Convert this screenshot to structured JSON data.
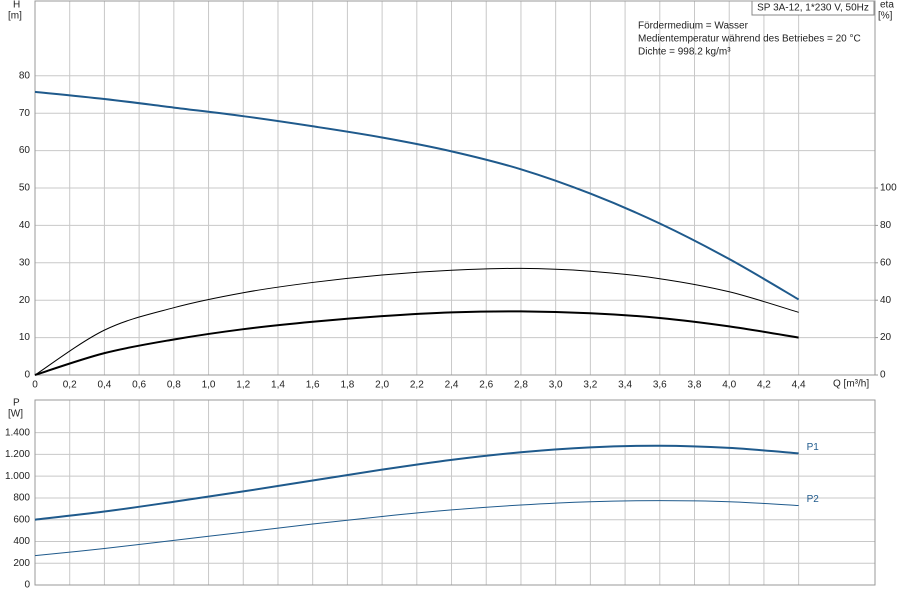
{
  "chart_data": [
    {
      "type": "line",
      "title": "SP 3A-12, 1*230 V, 50Hz",
      "annotations": [
        "Fördermedium = Wasser",
        "Medientemperatur während des Betriebes = 20 °C",
        "Dichte = 998.2 kg/m³"
      ],
      "ylabel": "H",
      "yunit": "[m]",
      "y2label": "eta",
      "y2unit": "[%]",
      "xlabel": "Q [m³/h]",
      "xlim": [
        0,
        4.84
      ],
      "xticks": [
        0,
        {
          "value": 0.2,
          "label": "0,2"
        },
        {
          "value": 0.4,
          "label": "0,4"
        },
        {
          "value": 0.6,
          "label": "0,6"
        },
        {
          "value": 0.8,
          "label": "0,8"
        },
        {
          "value": 1.0,
          "label": "1,0"
        },
        {
          "value": 1.2,
          "label": "1,2"
        },
        {
          "value": 1.4,
          "label": "1,4"
        },
        {
          "value": 1.6,
          "label": "1,6"
        },
        {
          "value": 1.8,
          "label": "1,8"
        },
        {
          "value": 2.0,
          "label": "2,0"
        },
        {
          "value": 2.2,
          "label": "2,2"
        },
        {
          "value": 2.4,
          "label": "2,4"
        },
        {
          "value": 2.6,
          "label": "2,6"
        },
        {
          "value": 2.8,
          "label": "2,8"
        },
        {
          "value": 3.0,
          "label": "3,0"
        },
        {
          "value": 3.2,
          "label": "3,2"
        },
        {
          "value": 3.4,
          "label": "3,4"
        },
        {
          "value": 3.6,
          "label": "3,6"
        },
        {
          "value": 3.8,
          "label": "3,8"
        },
        {
          "value": 4.0,
          "label": "4,0"
        },
        {
          "value": 4.2,
          "label": "4,2"
        },
        {
          "value": 4.4,
          "label": "4,4"
        }
      ],
      "ylim": [
        0,
        100
      ],
      "yticks": [
        0,
        10,
        20,
        30,
        40,
        50,
        60,
        70,
        80
      ],
      "y2lim": [
        0,
        200
      ],
      "y2ticks": [
        0,
        20,
        40,
        60,
        80,
        100
      ],
      "x": [
        0,
        0.4,
        0.8,
        1.2,
        1.6,
        2.0,
        2.4,
        2.8,
        3.2,
        3.6,
        4.0,
        4.4
      ],
      "series": [
        {
          "color": "#1f5a8c",
          "width": 2,
          "values": [
            75.7,
            73.8,
            71.5,
            69.2,
            66.5,
            63.5,
            59.8,
            55,
            48.5,
            40.5,
            31,
            20.2
          ]
        },
        {
          "color": "#000000",
          "width": 1,
          "axis": "y2",
          "values": [
            0,
            24,
            36,
            44,
            49.5,
            53.5,
            56,
            57,
            55.5,
            51.5,
            44.5,
            33.5
          ]
        },
        {
          "color": "#000000",
          "width": 2,
          "axis": "y2",
          "values": [
            0,
            11.7,
            19,
            24.5,
            28.5,
            31.5,
            33.5,
            34,
            33,
            30.5,
            26,
            20
          ]
        }
      ]
    },
    {
      "type": "line",
      "ylabel": "P",
      "yunit": "[W]",
      "xlim": [
        0,
        4.84
      ],
      "xgrid": [
        0,
        0.2,
        0.4,
        0.6,
        0.8,
        1.0,
        1.2,
        1.4,
        1.6,
        1.8,
        2.0,
        2.2,
        2.4,
        2.6,
        2.8,
        3.0,
        3.2,
        3.4,
        3.6,
        3.8,
        4.0,
        4.2,
        4.4
      ],
      "ylim": [
        0,
        1700
      ],
      "yticks": [
        0,
        200,
        400,
        600,
        800,
        {
          "value": 1000,
          "label": "1.000"
        },
        {
          "value": 1200,
          "label": "1.200"
        },
        {
          "value": 1400,
          "label": "1.400"
        }
      ],
      "x": [
        0,
        0.4,
        0.8,
        1.2,
        1.6,
        2.0,
        2.4,
        2.8,
        3.2,
        3.6,
        4.0,
        4.4
      ],
      "series": [
        {
          "name": "P1",
          "color": "#1f5a8c",
          "width": 2,
          "values": [
            600,
            675,
            765,
            860,
            960,
            1060,
            1150,
            1220,
            1265,
            1280,
            1260,
            1210
          ]
        },
        {
          "name": "P2",
          "color": "#1f5a8c",
          "width": 1,
          "values": [
            270,
            335,
            410,
            485,
            560,
            630,
            690,
            735,
            765,
            775,
            765,
            730
          ]
        }
      ]
    }
  ]
}
